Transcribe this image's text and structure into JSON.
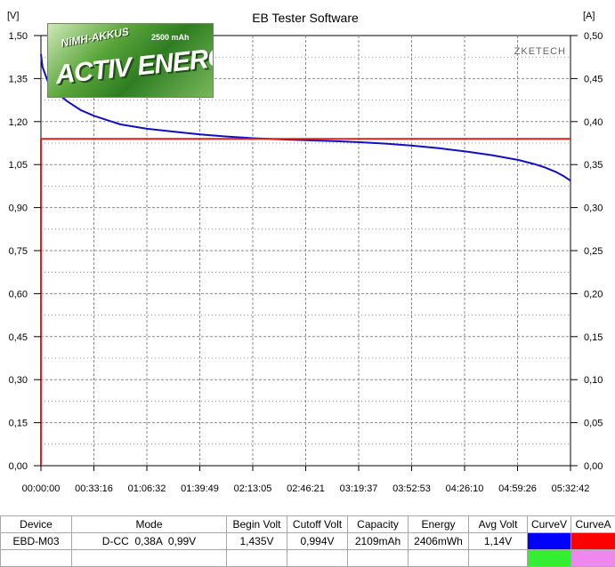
{
  "window": {
    "title": "EB Tester Software",
    "brand": "ZKETECH"
  },
  "logo": {
    "line1": "NiMH-AKKUS",
    "line2": "2500 mAh",
    "line3": "ACTIV ENERGY"
  },
  "chart_data": {
    "type": "line",
    "title": "EB Tester Software",
    "y_left_unit": "[V]",
    "y_right_unit": "[A]",
    "ylim_left": [
      0,
      1.5
    ],
    "ylim_right": [
      0,
      0.5
    ],
    "y_left_ticks": [
      "1,50",
      "1,35",
      "1,20",
      "1,05",
      "0,90",
      "0,75",
      "0,60",
      "0,45",
      "0,30",
      "0,15",
      "0,00"
    ],
    "y_right_ticks": [
      "0,50",
      "0,45",
      "0,40",
      "0,35",
      "0,30",
      "0,25",
      "0,20",
      "0,15",
      "0,10",
      "0,05",
      "0,00"
    ],
    "x_ticks": [
      "00:00:00",
      "00:33:16",
      "01:06:32",
      "01:39:49",
      "02:13:05",
      "02:46:21",
      "03:19:37",
      "03:52:53",
      "04:26:10",
      "04:59:26",
      "05:32:42"
    ],
    "xlim_seconds": [
      0,
      19962
    ],
    "grid": true,
    "series": [
      {
        "name": "CurveV",
        "axis": "left",
        "color": "#1010c0",
        "x": [
          0,
          60,
          300,
          600,
          1000,
          1500,
          2000,
          2500,
          3000,
          4000,
          5000,
          6000,
          7000,
          8000,
          9000,
          10000,
          11000,
          12000,
          13000,
          14000,
          15000,
          16000,
          17000,
          18000,
          18600,
          19000,
          19400,
          19700,
          19962
        ],
        "values": [
          1.435,
          1.39,
          1.33,
          1.3,
          1.27,
          1.24,
          1.22,
          1.205,
          1.19,
          1.175,
          1.165,
          1.155,
          1.148,
          1.142,
          1.138,
          1.135,
          1.132,
          1.128,
          1.123,
          1.116,
          1.107,
          1.096,
          1.083,
          1.066,
          1.052,
          1.04,
          1.025,
          1.01,
          0.994
        ]
      },
      {
        "name": "CurveA",
        "axis": "right",
        "color": "#e02020",
        "x": [
          0,
          0,
          19962
        ],
        "values": [
          0,
          0.38,
          0.38
        ]
      }
    ]
  },
  "table": {
    "headers": [
      "Device",
      "Mode",
      "Begin Volt",
      "Cutoff Volt",
      "Capacity",
      "Energy",
      "Avg Volt",
      "CurveV",
      "CurveA"
    ],
    "row": [
      "EBD-M03",
      "D-CC  0,38A  0,99V",
      "1,435V",
      "0,994V",
      "2109mAh",
      "2406mWh",
      "1,14V"
    ],
    "swatches": {
      "curveV": "#0000ff",
      "curveA": "#ff0000",
      "extra1": "#33ee33",
      "extra2": "#ee88ee"
    }
  }
}
